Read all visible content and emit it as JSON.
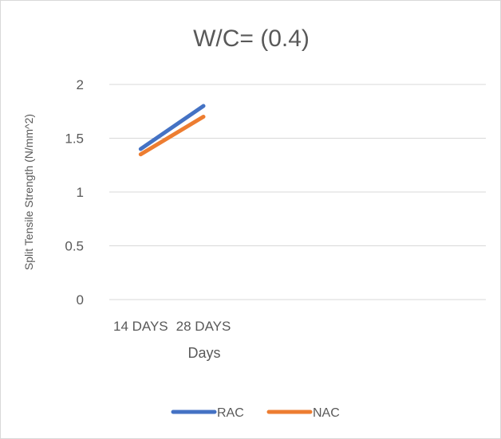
{
  "chart_data": {
    "type": "line",
    "title": "W/C= (0.4)",
    "xlabel": "Days",
    "ylabel": "Split Tensile Strength (N/mm^2)",
    "categories": [
      "14 DAYS",
      "28 DAYS"
    ],
    "slots": 6,
    "ylim": [
      0,
      2
    ],
    "yticks": [
      0,
      0.5,
      1,
      1.5,
      2
    ],
    "grid": true,
    "legend": "bottom",
    "series": [
      {
        "name": "RAC",
        "values": [
          1.4,
          1.8
        ],
        "color": "#4472C4"
      },
      {
        "name": "NAC",
        "values": [
          1.35,
          1.7
        ],
        "color": "#ED7D31"
      }
    ]
  }
}
